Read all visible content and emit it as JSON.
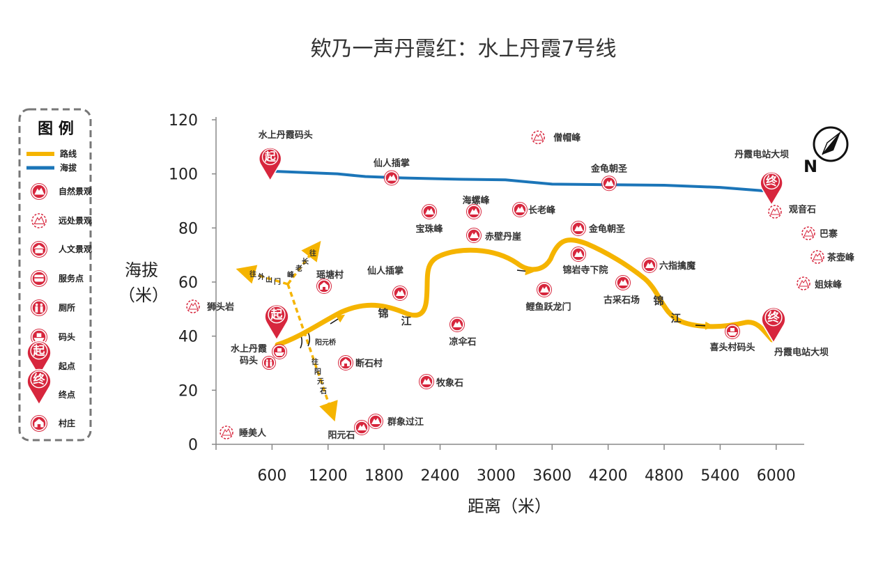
{
  "title": "欸乃一声丹霞红：水上丹霞7号线",
  "legend": {
    "title": "图 例",
    "items": [
      {
        "label": "路线",
        "icon": "route-line-icon"
      },
      {
        "label": "海拔",
        "icon": "elevation-line-icon"
      },
      {
        "label": "自然景观",
        "icon": "mountain-icon"
      },
      {
        "label": "远处景观",
        "icon": "distant-mountain-icon"
      },
      {
        "label": "人文景观",
        "icon": "pavilion-icon"
      },
      {
        "label": "服务点",
        "icon": "service-icon"
      },
      {
        "label": "厕所",
        "icon": "toilet-icon"
      },
      {
        "label": "码头",
        "icon": "boat-icon"
      },
      {
        "label": "起点",
        "icon": "start-pin-icon",
        "glyph": "起"
      },
      {
        "label": "终点",
        "icon": "end-pin-icon",
        "glyph": "终"
      },
      {
        "label": "村庄",
        "icon": "village-icon"
      }
    ]
  },
  "colors": {
    "route": "#f5b400",
    "elevation": "#1b75b8",
    "marker": "#d7263d",
    "legend_border": "#777777",
    "axis": "#888888"
  },
  "axes": {
    "x_label": "距离（米）",
    "y_label_line1": "海拔",
    "y_label_line2": "（米）",
    "x_ticks": [
      "600",
      "1200",
      "1800",
      "2400",
      "3000",
      "3600",
      "4200",
      "4800",
      "5400",
      "6000"
    ],
    "y_ticks": [
      "0",
      "20",
      "40",
      "60",
      "80",
      "100",
      "120"
    ]
  },
  "compass": {
    "north_label": "N"
  },
  "chart_data": {
    "type": "line",
    "xlabel": "距离（米）",
    "ylabel": "海拔（米）",
    "xlim": [
      0,
      6300
    ],
    "ylim": [
      0,
      120
    ],
    "x_ticks": [
      600,
      1200,
      1800,
      2400,
      3000,
      3600,
      4200,
      4800,
      5400,
      6000
    ],
    "y_ticks": [
      0,
      20,
      40,
      60,
      80,
      100,
      120
    ],
    "series": [
      {
        "name": "海拔",
        "x": [
          580,
          1300,
          1600,
          2000,
          2600,
          3100,
          3600,
          4200,
          4800,
          5400,
          5950
        ],
        "values": [
          101,
          100,
          99,
          98.5,
          98,
          97.8,
          96.2,
          96,
          95.8,
          95,
          93.5
        ]
      }
    ],
    "upper_markers": [
      {
        "label": "水上丹霞码头",
        "x": 580,
        "y": 106,
        "pin": "start"
      },
      {
        "label": "仙人插掌",
        "x": 1880,
        "y": 98.5,
        "pin": "mountain"
      },
      {
        "label": "僧帽峰",
        "x": 3450,
        "y": 113.5,
        "pin": "distant"
      },
      {
        "label": "金龟朝圣",
        "x": 4210,
        "y": 96.5,
        "pin": "mountain"
      },
      {
        "label": "丹霞电站大坝",
        "x": 5950,
        "y": 97,
        "pin": "end"
      }
    ]
  },
  "route": {
    "river_chars": [
      "锦",
      "江",
      "锦",
      "江"
    ]
  },
  "roads": {
    "village_road_chars": [
      "往",
      "外",
      "山",
      "门"
    ],
    "peak_road_chars": [
      "往",
      "长",
      "老",
      "峰"
    ],
    "bridge_label": "阳元桥",
    "south_road_chars": [
      "往",
      "阳",
      "元",
      "石"
    ]
  },
  "pois": [
    {
      "label": "水上丹霞码头",
      "icon": "boat-icon"
    },
    {
      "label": "瑶塘村",
      "icon": "village-icon"
    },
    {
      "label": "仙人插掌",
      "icon": "mountain-icon"
    },
    {
      "label": "狮头岩",
      "icon": "distant-mountain-icon"
    },
    {
      "label": "断石村",
      "icon": "village-icon"
    },
    {
      "label": "睡美人",
      "icon": "distant-mountain-icon"
    },
    {
      "label": "阳元石",
      "icon": "mountain-icon"
    },
    {
      "label": "群象过江",
      "icon": "mountain-icon"
    },
    {
      "label": "牧象石",
      "icon": "mountain-icon"
    },
    {
      "label": "凉伞石",
      "icon": "mountain-icon"
    },
    {
      "label": "宝珠峰",
      "icon": "mountain-icon"
    },
    {
      "label": "海螺峰",
      "icon": "mountain-icon"
    },
    {
      "label": "赤壁丹崖",
      "icon": "mountain-icon"
    },
    {
      "label": "长老峰",
      "icon": "mountain-icon"
    },
    {
      "label": "金龟朝圣",
      "icon": "mountain-icon"
    },
    {
      "label": "锦岩寺下院",
      "icon": "mountain-icon"
    },
    {
      "label": "鲤鱼跃龙门",
      "icon": "mountain-icon"
    },
    {
      "label": "古采石场",
      "icon": "mountain-icon"
    },
    {
      "label": "六指擒魔",
      "icon": "mountain-icon"
    },
    {
      "label": "喜头村码头",
      "icon": "boat-icon"
    },
    {
      "label": "丹霞电站大坝",
      "icon": "end-pin-icon"
    },
    {
      "label": "观音石",
      "icon": "distant-mountain-icon"
    },
    {
      "label": "巴寨",
      "icon": "distant-mountain-icon"
    },
    {
      "label": "茶壶峰",
      "icon": "distant-mountain-icon"
    },
    {
      "label": "姐妹峰",
      "icon": "distant-mountain-icon"
    }
  ]
}
